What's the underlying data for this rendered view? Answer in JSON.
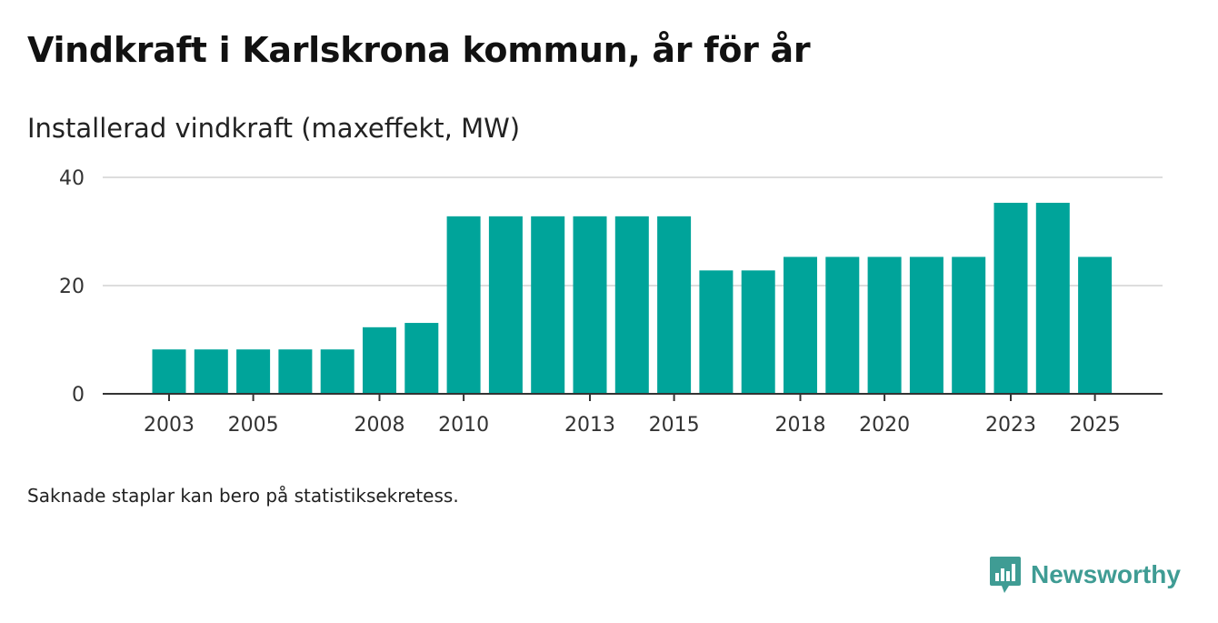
{
  "title": "Vindkraft i Karlskrona kommun, år för år",
  "footnote": "Saknade staplar kan bero på statistiksekretess.",
  "brand": {
    "name": "Newsworthy",
    "icon": "newsworthy-logo-icon"
  },
  "colors": {
    "bar": "#00a49a",
    "grid": "#dddddd",
    "axis": "#333333",
    "brand": "#3f9c94"
  },
  "chart_data": {
    "type": "bar",
    "title": "Installerad vindkraft (maxeffekt, MW)",
    "xlabel": "",
    "ylabel": "",
    "categories": [
      2003,
      2004,
      2005,
      2006,
      2007,
      2008,
      2009,
      2010,
      2011,
      2012,
      2013,
      2014,
      2015,
      2016,
      2017,
      2018,
      2019,
      2020,
      2021,
      2022,
      2023,
      2024,
      2025
    ],
    "values": [
      8.2,
      8.2,
      8.2,
      8.2,
      8.2,
      12.3,
      13.1,
      32.8,
      32.8,
      32.8,
      32.8,
      32.8,
      32.8,
      22.8,
      22.8,
      25.3,
      25.3,
      25.3,
      25.3,
      25.3,
      35.3,
      35.3,
      25.3
    ],
    "x_tick_labels": [
      "2003",
      "2005",
      "2008",
      "2010",
      "2013",
      "2015",
      "2018",
      "2020",
      "2023",
      "2025"
    ],
    "y_ticks": [
      0,
      20,
      40
    ],
    "ylim": [
      0,
      40
    ],
    "grid": true
  }
}
